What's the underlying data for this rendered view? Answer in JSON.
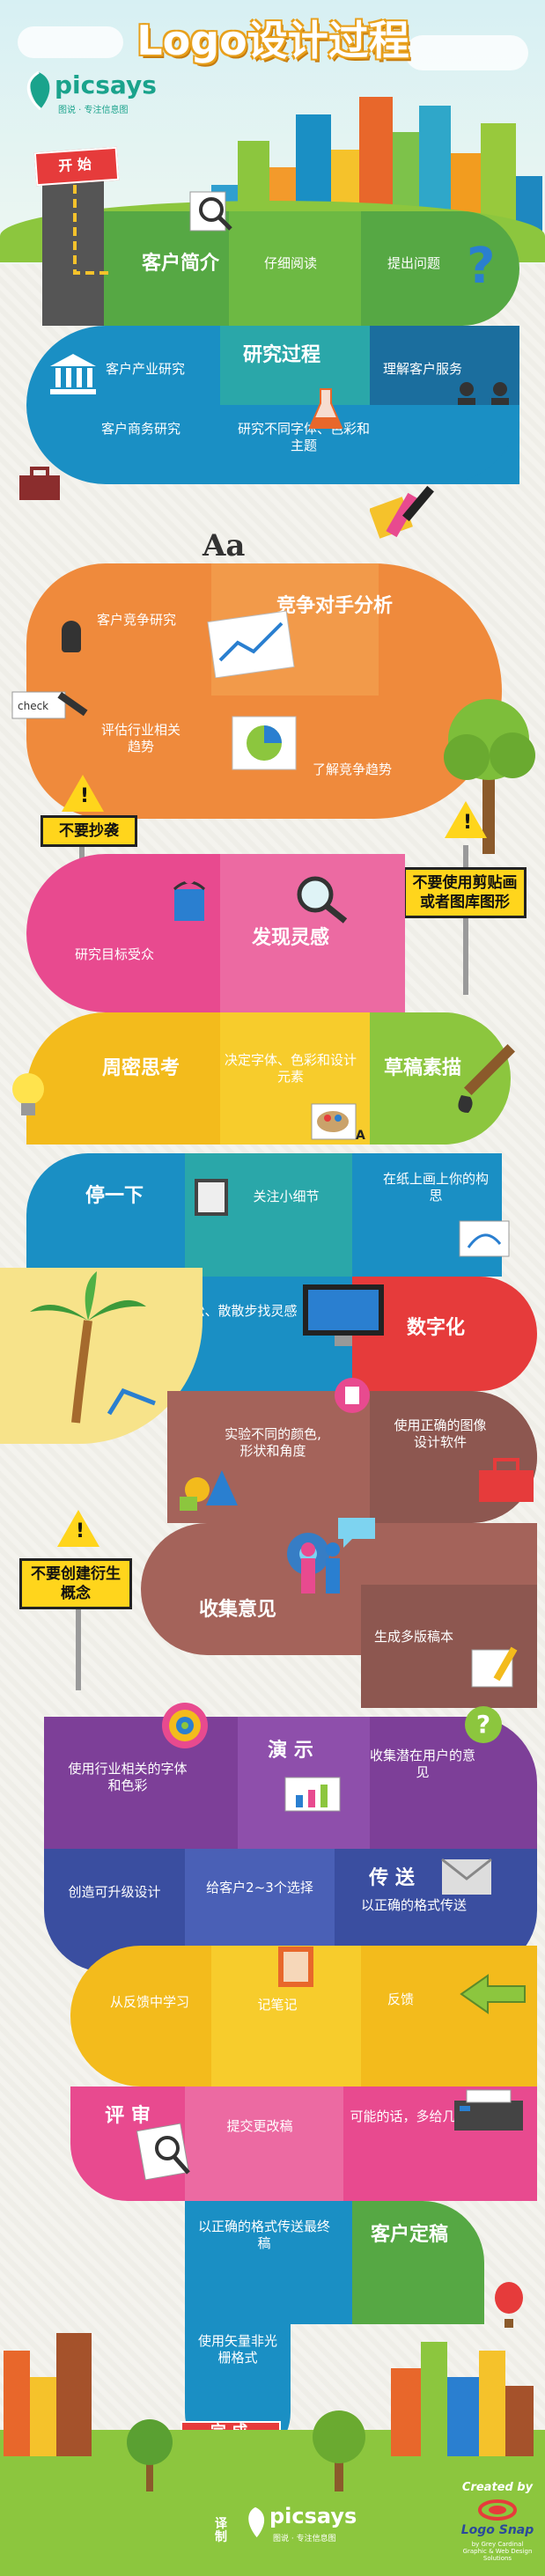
{
  "header": {
    "title": "Logo设计过程",
    "brand_name": "picsays",
    "brand_tagline": "图说 · 专注信息图"
  },
  "colors": {
    "sky": "#dff3f6",
    "green": "#6cb33f",
    "blue": "#1a8fc4",
    "teal": "#2aa7a9",
    "orange": "#ef8a3c",
    "pink": "#e84a8f",
    "yellow": "#f3bb1c",
    "lime": "#8cc63e",
    "red": "#e63b3b",
    "brown": "#a4635a",
    "purple": "#7d3f98",
    "indigo": "#3a4ea0",
    "sign": "#ffd51c"
  },
  "steps": {
    "start": "开 始",
    "client_intro": "客户简介",
    "read_carefully": "仔细阅读",
    "ask_questions": "提出问题",
    "client_industry": "客户产业研究",
    "research_process": "研究过程",
    "understand_client": "理解客户服务",
    "client_business": "客户商务研究",
    "study_fonts": "研究不同字体、色彩和主题",
    "font_sample": "Aa",
    "client_competition": "客户竞争研究",
    "competitor_analysis": "竞争对手分析",
    "industry_trends": "评估行业相关趋势",
    "competition_trends": "了解竞争趋势",
    "target_audience": "研究目标受众",
    "find_inspiration": "发现灵感",
    "think_thoroughly": "周密思考",
    "decide_fonts": "决定字体、色彩和设计元素",
    "sketch": "草稿素描",
    "pause": "停一下",
    "focus_details": "关注小细节",
    "paper_ideas": "在纸上画上你的构思",
    "relax": "放松、散散步找灵感",
    "digitize": "数字化",
    "experiment": "实验不同的颜色,形状和角度",
    "correct_software": "使用正确的图像设计软件",
    "collect_feedback": "收集意见",
    "multiple_drafts": "生成多版稿本",
    "industry_fonts": "使用行业相关的字体和色彩",
    "present": "演 示",
    "collect_potential": "收集潜在用户的意见",
    "upgradable": "创造可升级设计",
    "give_options": "给客户2~3个选择",
    "deliver": "传 送",
    "deliver_format": "以正确的格式传送",
    "learn_feedback": "从反馈中学习",
    "take_notes": "记笔记",
    "feedback": "反馈",
    "review": "评 审",
    "submit_revision": "提交更改稿",
    "more_drafts": "可能的话，多给几稿",
    "final_format": "以正确的格式传送最终稿",
    "client_custom": "客户定稿",
    "vector_format": "使用矢量非光栅格式",
    "complete": "完 成"
  },
  "signs": {
    "no_copy": "不要抄袭",
    "no_clipart": "不要使用剪贴画或者图库图形",
    "no_derivative": "不要创建衍生概念"
  },
  "footer": {
    "made_by": "译制",
    "brand_name": "picsays",
    "brand_tagline": "图说 · 专注信息图",
    "created_by": "Created by",
    "partner": "Logo Snap",
    "partner_tagline": "by Grey Cardinal\nGraphic & Web Design Solutions"
  },
  "icons": [
    "magnifier-icon",
    "question-mark-icon",
    "bank-icon",
    "briefcase-icon",
    "people-icon",
    "flask-icon",
    "paint-icon",
    "chart-icon",
    "pie-chart-icon",
    "pen-icon",
    "warning-icon",
    "paint-bucket-icon",
    "lightbulb-icon",
    "palette-icon",
    "brush-icon",
    "notepad-icon",
    "monitor-icon",
    "phone-icon",
    "toolbox-icon",
    "shapes-icon",
    "megaphone-icon",
    "speech-bubble-icon",
    "target-icon",
    "presentation-icon",
    "envelope-icon",
    "arrow-icon",
    "pencil-icon",
    "printer-icon",
    "magnifier-icon",
    "palm-tree-icon",
    "tree-icon",
    "city-icon",
    "balloon-icon",
    "down-arrow-icon"
  ]
}
